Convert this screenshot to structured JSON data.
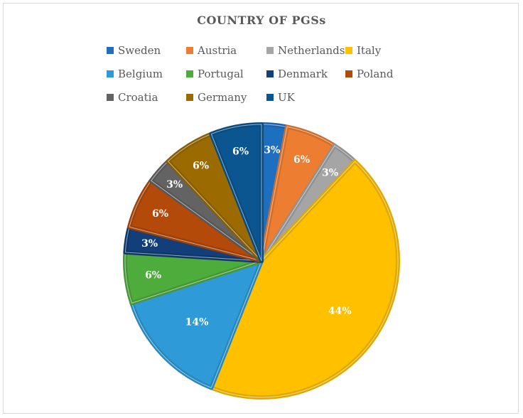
{
  "chart_data": {
    "type": "pie",
    "title": "COUNTRY OF PGSs",
    "legend_position": "top",
    "slices": [
      {
        "name": "Sweden",
        "value": 3,
        "label": "3%",
        "color": "#1f6fc0"
      },
      {
        "name": "Austria",
        "value": 6,
        "label": "6%",
        "color": "#ed7d31"
      },
      {
        "name": "Netherlands",
        "value": 3,
        "label": "3%",
        "color": "#a5a5a5"
      },
      {
        "name": "Italy",
        "value": 44,
        "label": "44%",
        "color": "#ffc000"
      },
      {
        "name": "Belgium",
        "value": 14,
        "label": "14%",
        "color": "#2e9ad8"
      },
      {
        "name": "Portugal",
        "value": 6,
        "label": "6%",
        "color": "#4eac3c"
      },
      {
        "name": "Denmark",
        "value": 3,
        "label": "3%",
        "color": "#123f7a"
      },
      {
        "name": "Poland",
        "value": 6,
        "label": "6%",
        "color": "#b44a0a"
      },
      {
        "name": "Croatia",
        "value": 3,
        "label": "3%",
        "color": "#636363"
      },
      {
        "name": "Germany",
        "value": 6,
        "label": "6%",
        "color": "#9b6b02"
      },
      {
        "name": "UK",
        "value": 6,
        "label": "6%",
        "color": "#0b5690"
      }
    ]
  }
}
